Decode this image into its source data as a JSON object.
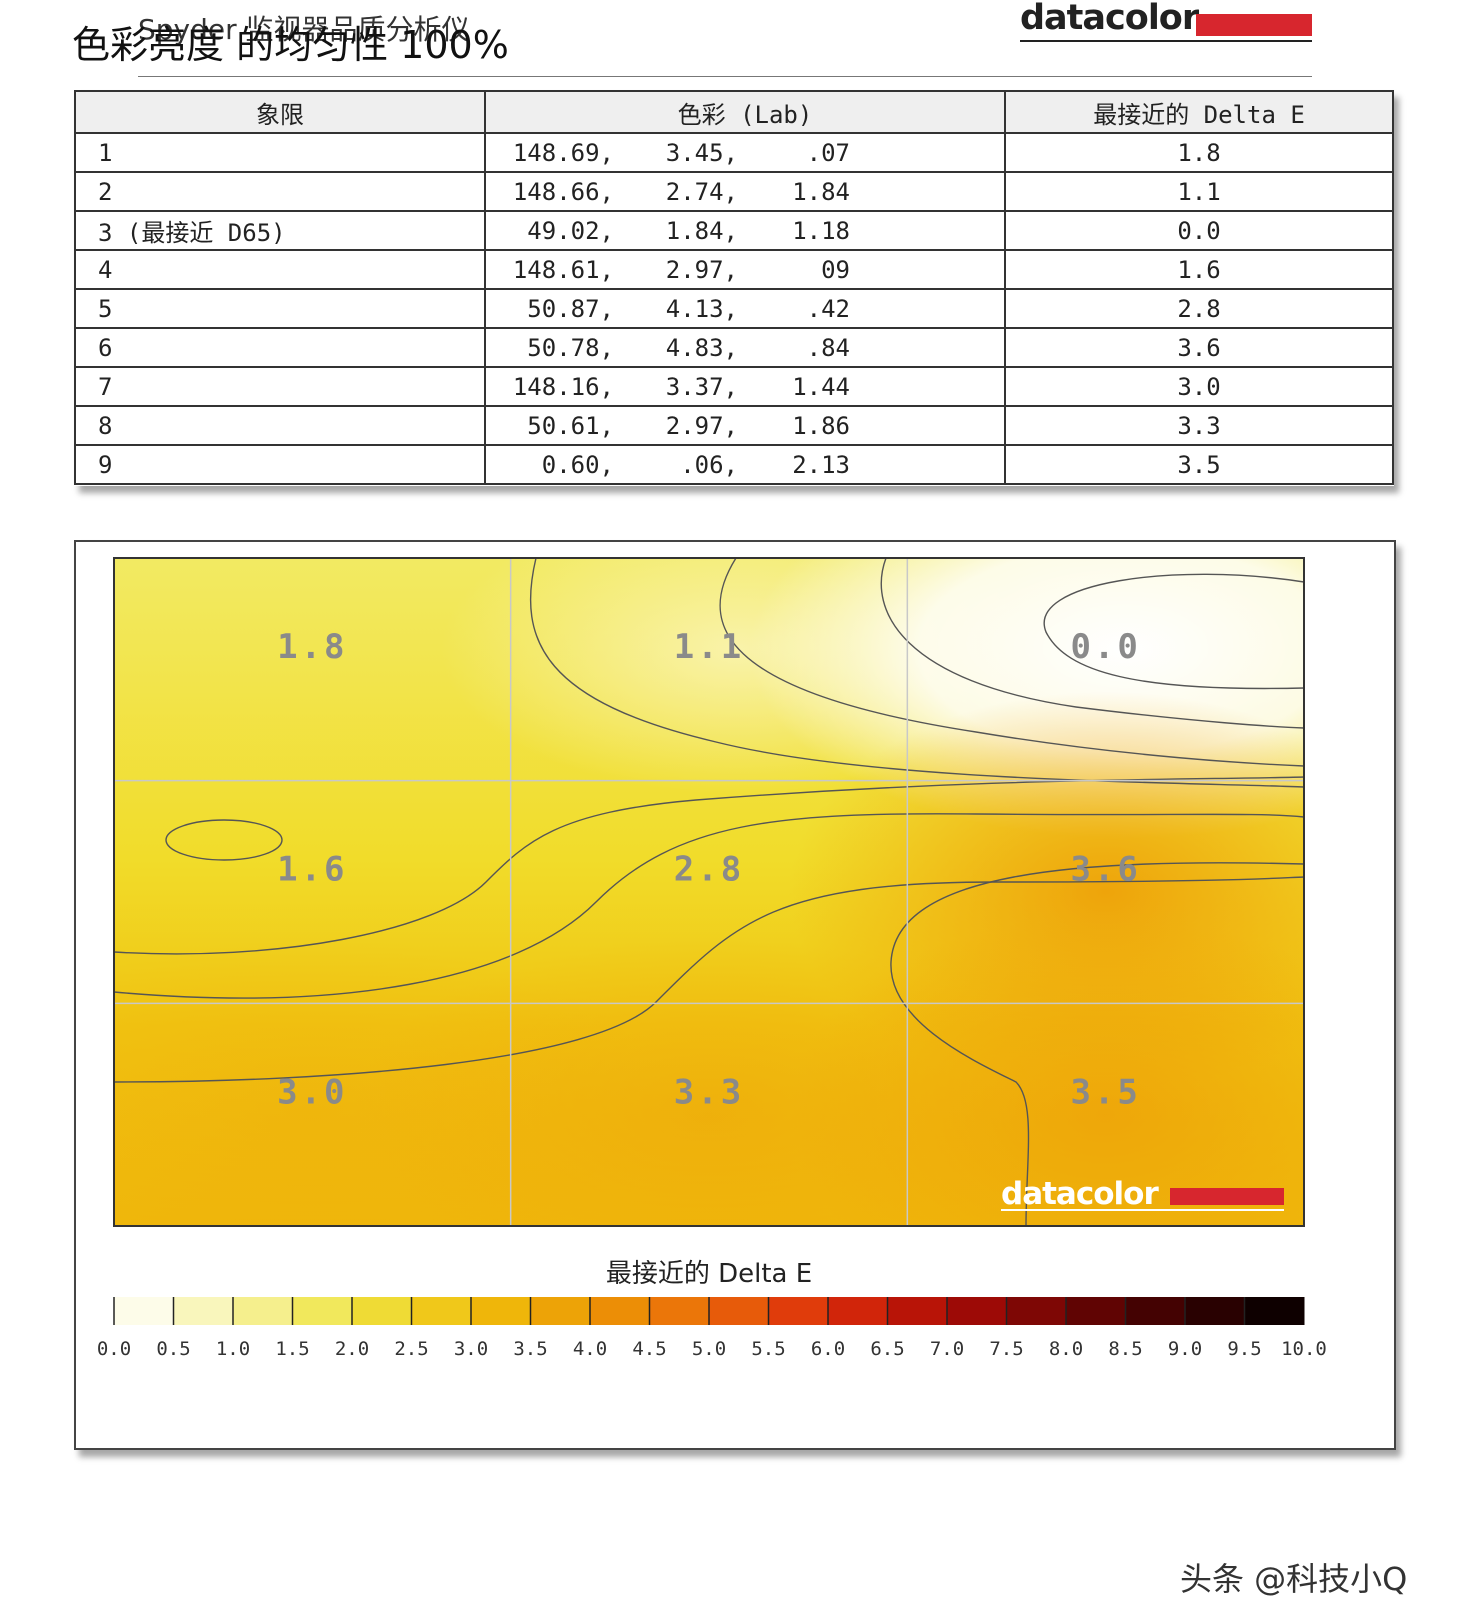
{
  "header": {
    "subtitle": "Spyder 监视器品质分析仪",
    "title": "色彩亮度 的均匀性 100%",
    "logo_text": "datacolor"
  },
  "table": {
    "headers": [
      "象限",
      "色彩 (Lab)",
      "最接近的 Delta E"
    ],
    "rows": [
      {
        "quadrant": "1",
        "l": "148.69,",
        "a": "3.45,",
        "b": ".07",
        "delta_e": "1.8"
      },
      {
        "quadrant": "2",
        "l": "148.66,",
        "a": "2.74,",
        "b": "1.84",
        "delta_e": "1.1"
      },
      {
        "quadrant": "3 (最接近 D65)",
        "l": "49.02,",
        "a": "1.84,",
        "b": "1.18",
        "delta_e": "0.0"
      },
      {
        "quadrant": "4",
        "l": "148.61,",
        "a": "2.97,",
        "b": "09",
        "delta_e": "1.6"
      },
      {
        "quadrant": "5",
        "l": "50.87,",
        "a": "4.13,",
        "b": ".42",
        "delta_e": "2.8"
      },
      {
        "quadrant": "6",
        "l": "50.78,",
        "a": "4.83,",
        "b": ".84",
        "delta_e": "3.6"
      },
      {
        "quadrant": "7",
        "l": "148.16,",
        "a": "3.37,",
        "b": "1.44",
        "delta_e": "3.0"
      },
      {
        "quadrant": "8",
        "l": "50.61,",
        "a": "2.97,",
        "b": "1.86",
        "delta_e": "3.3"
      },
      {
        "quadrant": "9",
        "l": "0.60,",
        "a": ".06,",
        "b": "2.13",
        "delta_e": "3.5"
      }
    ]
  },
  "chart_data": {
    "type": "heatmap",
    "title": "最接近的 Delta E",
    "grid_rows": 3,
    "grid_cols": 3,
    "values": [
      [
        1.8,
        1.1,
        0.0
      ],
      [
        1.6,
        2.8,
        3.6
      ],
      [
        3.0,
        3.3,
        3.5
      ]
    ],
    "value_labels": [
      [
        "1.8",
        "1.1",
        "0.0"
      ],
      [
        "1.6",
        "2.8",
        "3.6"
      ],
      [
        "3.0",
        "3.3",
        "3.5"
      ]
    ],
    "scale_min": 0,
    "scale_max": 10,
    "scale_ticks": [
      "0.0",
      "0.5",
      "1.0",
      "1.5",
      "2.0",
      "2.5",
      "3.0",
      "3.5",
      "4.0",
      "4.5",
      "5.0",
      "5.5",
      "6.0",
      "6.5",
      "7.0",
      "7.5",
      "8.0",
      "8.5",
      "9.0",
      "9.5",
      "10.0"
    ],
    "colors": {
      "0.0": "#ffffff",
      "1.0": "#f7f3a6",
      "2.0": "#efe443",
      "3.0": "#f0bf0c",
      "4.0": "#ec9a05",
      "5.0": "#ea6a0a",
      "6.0": "#dd2d0b",
      "7.0": "#ac0c06",
      "8.0": "#6e0504",
      "9.0": "#360101",
      "10.0": "#000000"
    },
    "watermark": "datacolor"
  },
  "footer": {
    "watermark": "头条 @科技小Q"
  }
}
